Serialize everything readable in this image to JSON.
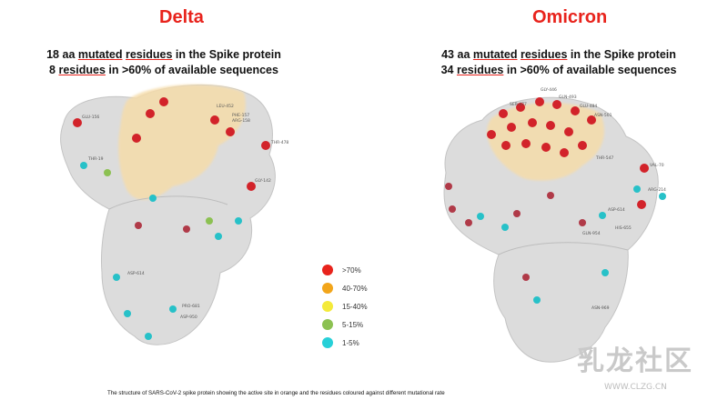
{
  "panels": {
    "delta": {
      "title": "Delta",
      "subtitle_1": {
        "count": "18 aa",
        "u1": "mutated",
        "mid": "residues",
        "rest": "in the Spike protein"
      },
      "subtitle_2": {
        "count": "8",
        "u1": "residues",
        "rest": "in >60% of available sequences"
      },
      "residue_labels": [
        "GLU-156",
        "PHE-157",
        "ARG-158",
        "THR-478",
        "LEU-452",
        "ASP-614",
        "PRO-681",
        "ASP-950",
        "THR-19",
        "GLY-142"
      ]
    },
    "omicron": {
      "title": "Omicron",
      "subtitle_1": {
        "count": "43 aa",
        "u1": "mutated",
        "mid": "residues",
        "rest": "in the Spike protein"
      },
      "subtitle_2": {
        "count": "34",
        "u1": "residues",
        "rest": "in >60% of available sequences"
      },
      "residue_labels": [
        "GLY-446",
        "GLN-493",
        "SER-477",
        "GLU-484",
        "ASN-501",
        "THR-547",
        "VAL-70",
        "ARG-214",
        "ASP-614",
        "HIS-655",
        "GLN-954",
        "ASN-969"
      ]
    }
  },
  "legend": [
    {
      "label": ">70%",
      "color": "#e8231c"
    },
    {
      "label": "40-70%",
      "color": "#f2a51a"
    },
    {
      "label": "15-40%",
      "color": "#f4ea3a"
    },
    {
      "label": "5-15%",
      "color": "#8cc152"
    },
    {
      "label": "1-5%",
      "color": "#27d0d8"
    }
  ],
  "caption": "The structure of SARS-CoV-2 spike protein showing the active site in orange and the residues coloured against different mutational rate",
  "watermark": {
    "text": "乳龙社区",
    "url": "WWW.CLZG.CN"
  },
  "colors": {
    "title": "#e8231c",
    "protein": "#d9d9d9",
    "active_site": "#f5dcaa"
  }
}
